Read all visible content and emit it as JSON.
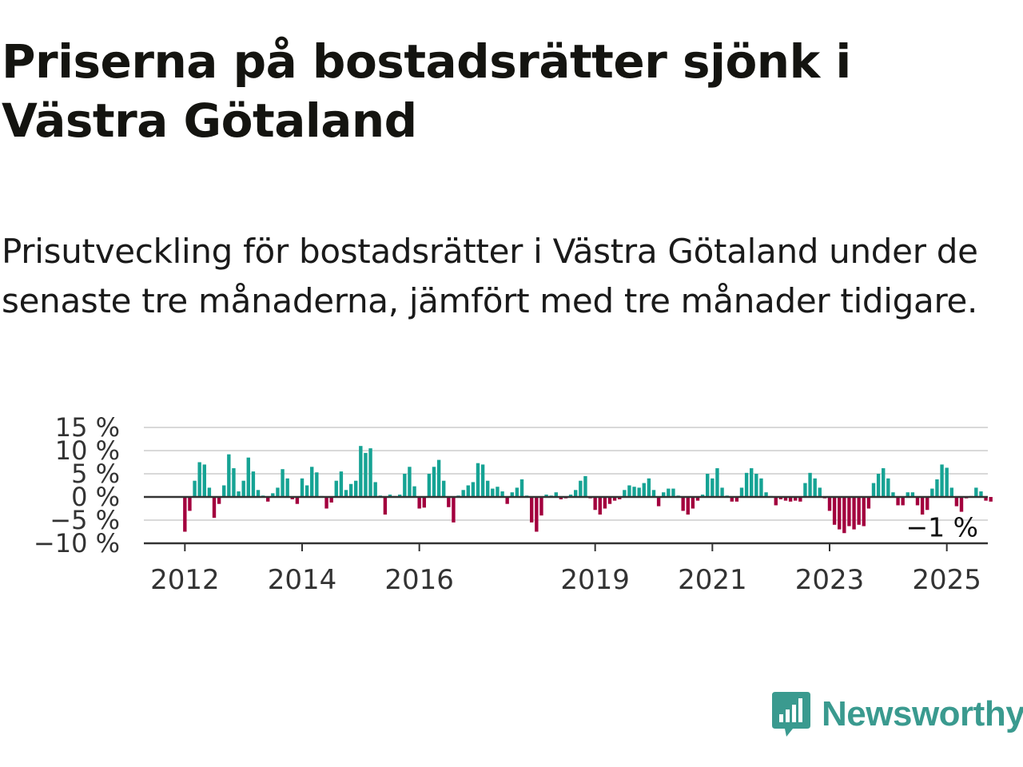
{
  "title": "Priserna på bostadsrätter sjönk i Västra Götaland",
  "subtitle": "Prisutveckling för bostadsrätter i Västra Götaland under de senaste tre månaderna, jämfört med tre månader tidigare.",
  "brand": "Newsworthy",
  "colors": {
    "positive": "#16a394",
    "negative": "#a3003e",
    "grid": "#d9d9d9",
    "axis": "#333333",
    "brand": "#3a9a8f"
  },
  "chart_data": {
    "type": "bar",
    "title": "",
    "xlabel": "",
    "ylabel": "",
    "ylim": [
      -10,
      15
    ],
    "xlim": [
      2011.3,
      2025.7
    ],
    "y_ticks": [
      {
        "value": 15,
        "label": "15 %"
      },
      {
        "value": 10,
        "label": "10 %"
      },
      {
        "value": 5,
        "label": "5 %"
      },
      {
        "value": 0,
        "label": "0 %"
      },
      {
        "value": -5,
        "label": "−5 %"
      },
      {
        "value": -10,
        "label": "−10 %"
      }
    ],
    "x_ticks": [
      {
        "value": 2012,
        "label": "2012"
      },
      {
        "value": 2014,
        "label": "2014"
      },
      {
        "value": 2016,
        "label": "2016"
      },
      {
        "value": 2019,
        "label": "2019"
      },
      {
        "value": 2021,
        "label": "2021"
      },
      {
        "value": 2023,
        "label": "2023"
      },
      {
        "value": 2025,
        "label": "2025"
      }
    ],
    "grid": true,
    "legend": "none",
    "start": "2012-01",
    "frequency": "monthly",
    "values": [
      -7.5,
      -3,
      3.5,
      7.5,
      7,
      2,
      -4.5,
      -1.5,
      2.5,
      9.2,
      6.2,
      1.2,
      3.5,
      8.5,
      5.5,
      1.5,
      0.3,
      -1,
      0.8,
      2,
      6,
      4,
      -0.5,
      -1.5,
      4,
      2.5,
      6.5,
      5.3,
      0.2,
      -2.5,
      -1.2,
      3.5,
      5.5,
      1.5,
      2.8,
      3.5,
      11,
      9.5,
      10.5,
      3.2,
      0.3,
      -3.8,
      0.5,
      0.2,
      0.5,
      5,
      6.5,
      2.3,
      -2.5,
      -2.3,
      5,
      6.5,
      8,
      3.5,
      -2.2,
      -5.5,
      0.3,
      1.5,
      2.5,
      3.2,
      7.3,
      7,
      3.5,
      1.8,
      2.2,
      1.2,
      -1.5,
      1,
      2,
      3.8,
      0.3,
      -5.5,
      -7.5,
      -4,
      0.5,
      0.3,
      1,
      -0.5,
      -0.3,
      0.5,
      1.5,
      3.5,
      4.5,
      -0.3,
      -2.8,
      -3.8,
      -2.5,
      -1.5,
      -0.8,
      -0.5,
      1.5,
      2.5,
      2.2,
      2,
      3,
      4,
      1.5,
      -2,
      1,
      1.8,
      1.8,
      0.3,
      -3,
      -3.8,
      -2.5,
      -0.8,
      0.5,
      5,
      4,
      6.2,
      2,
      0.3,
      -1,
      -1,
      2,
      5.2,
      6.2,
      5,
      4,
      1,
      0.2,
      -1.8,
      -0.5,
      -0.8,
      -1,
      -0.8,
      -1,
      3,
      5.2,
      4,
      2,
      -0.3,
      -3,
      -6,
      -7,
      -7.8,
      -6.3,
      -7,
      -6,
      -6.3,
      -2.5,
      3,
      5,
      6.2,
      4,
      1,
      -1.8,
      -1.8,
      1,
      1,
      -1.8,
      -3.8,
      -2.8,
      1.8,
      3.8,
      7,
      6.3,
      2,
      -2,
      -3.2,
      -0.3,
      0.2,
      2,
      1.2,
      -0.8,
      -1
    ],
    "annotation": "−1 %"
  }
}
